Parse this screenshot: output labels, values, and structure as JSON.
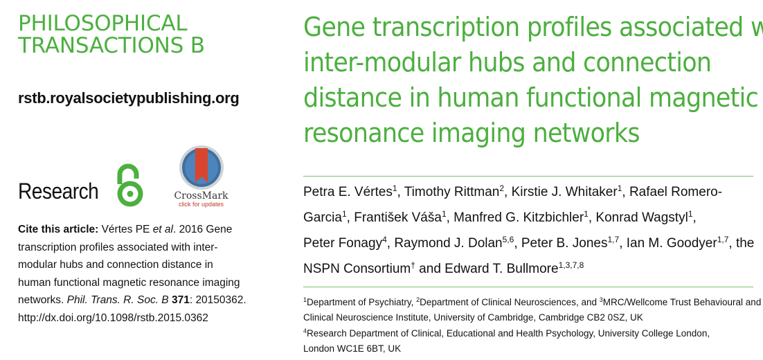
{
  "journal": {
    "line1": "PHILOSOPHICAL",
    "line2": "TRANSACTIONS B",
    "url": "rstb.royalsocietypublishing.org",
    "section": "Research",
    "brand_color": "#4caf3f"
  },
  "icons": {
    "open_access": "open-access-icon",
    "crossmark": "crossmark-icon"
  },
  "crossmark": {
    "name": "CrossMark",
    "subtitle": "click for updates"
  },
  "citation": {
    "label": "Cite this article:",
    "line1_text": " Vértes PE ",
    "line1_etal": "et al",
    "line1_rest": ". 2016 Gene",
    "line2": "transcription profiles associated with inter-",
    "line3": "modular hubs and connection distance in",
    "line4": "human functional magnetic resonance imaging",
    "line5_pre": "networks. ",
    "line5_journal": "Phil. Trans. R. Soc. B",
    "line5_vol": " 371",
    "line5_rest": ": 20150362.",
    "line6": "http://dx.doi.org/10.1098/rstb.2015.0362"
  },
  "article": {
    "title_lines": [
      "Gene transcription profiles associated with",
      "inter-modular hubs and connection",
      "distance in human functional magnetic",
      "resonance imaging networks"
    ]
  },
  "authors": {
    "l1": {
      "a": "Petra E. Vértes",
      "a_sup": "1",
      "b": ", Timothy Rittman",
      "b_sup": "2",
      "c": ", Kirstie J. Whitaker",
      "c_sup": "1",
      "d": ", Rafael Romero-"
    },
    "l2": {
      "a": "Garcia",
      "a_sup": "1",
      "b": ", František Váša",
      "b_sup": "1",
      "c": ", Manfred G. Kitzbichler",
      "c_sup": "1",
      "d": ", Konrad Wagstyl",
      "d_sup": "1",
      "e": ","
    },
    "l3": {
      "a": "Peter Fonagy",
      "a_sup": "4",
      "b": ", Raymond J. Dolan",
      "b_sup": "5,6",
      "c": ", Peter B. Jones",
      "c_sup": "1,7",
      "d": ", Ian M. Goodyer",
      "d_sup": "1,7",
      "e": ", the"
    },
    "l4": {
      "a": "NSPN Consortium",
      "a_sup": "†",
      "b": " and Edward T. Bullmore",
      "b_sup": "1,3,7,8"
    }
  },
  "affiliations": {
    "l1": {
      "s1": "1",
      "t1": "Department of Psychiatry, ",
      "s2": "2",
      "t2": "Department of Clinical Neurosciences, and ",
      "s3": "3",
      "t3": "MRC/Wellcome Trust Behavioural and"
    },
    "l2": "Clinical Neuroscience Institute, University of Cambridge, Cambridge CB2 0SZ, UK",
    "l3": {
      "s1": "4",
      "t1": "Research Department of Clinical, Educational and Health Psychology, University College London,"
    },
    "l4": "London WC1E 6BT, UK"
  }
}
